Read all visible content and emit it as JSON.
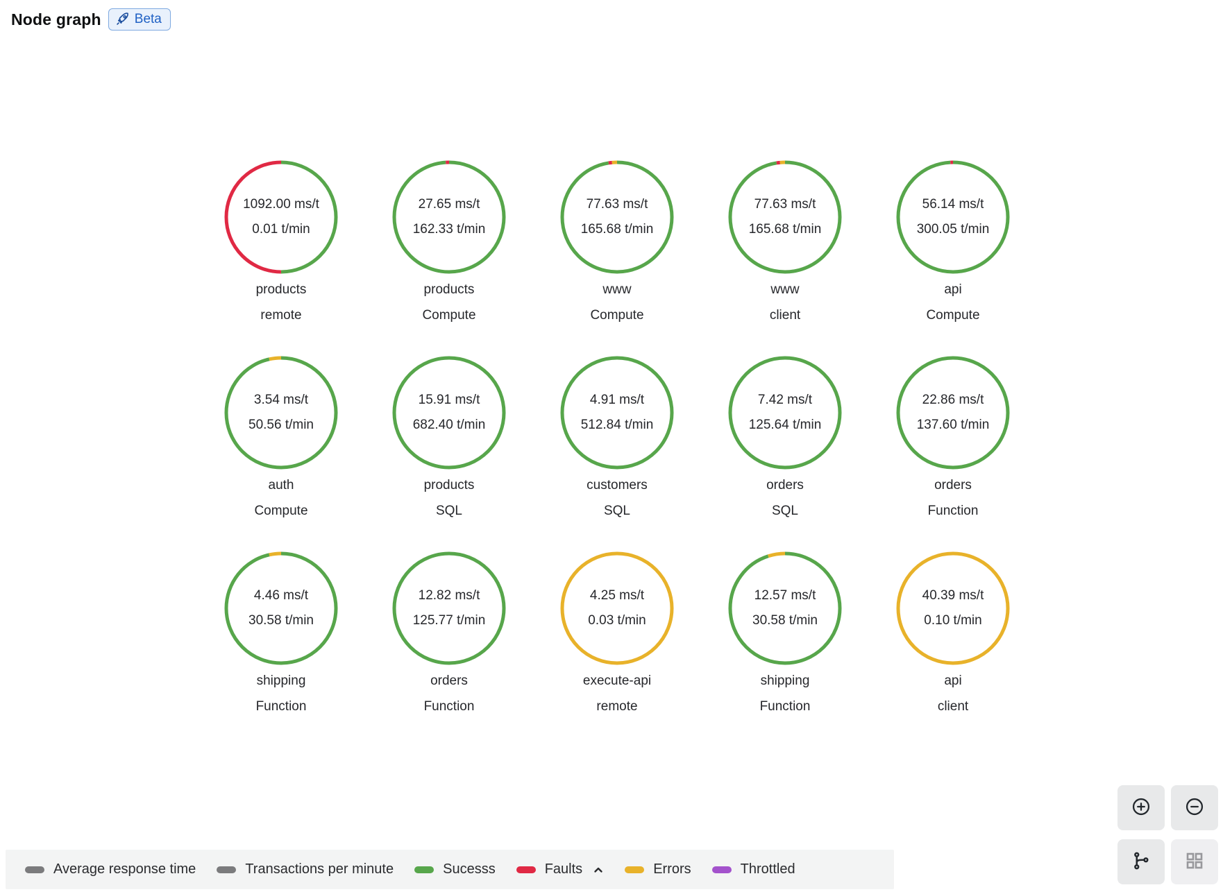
{
  "header": {
    "title": "Node graph",
    "beta_label": "Beta"
  },
  "colors": {
    "green": "#57a64b",
    "red": "#e02944",
    "yellow": "#e8b22a",
    "purple": "#a352cc",
    "gray": "#7b7b7d"
  },
  "nodes": [
    {
      "main_stat": "1092.00 ms/t",
      "secondary_stat": "0.01 t/min",
      "title": "products",
      "subtitle": "remote",
      "segments": [
        {
          "color": "green",
          "value": 0.5
        },
        {
          "color": "red",
          "value": 0.5
        }
      ]
    },
    {
      "main_stat": "27.65 ms/t",
      "secondary_stat": "162.33 t/min",
      "title": "products",
      "subtitle": "Compute",
      "segments": [
        {
          "color": "green",
          "value": 0.99
        },
        {
          "color": "red",
          "value": 0.01
        }
      ]
    },
    {
      "main_stat": "77.63 ms/t",
      "secondary_stat": "165.68 t/min",
      "title": "www",
      "subtitle": "Compute",
      "segments": [
        {
          "color": "green",
          "value": 0.975
        },
        {
          "color": "red",
          "value": 0.01
        },
        {
          "color": "yellow",
          "value": 0.015
        }
      ]
    },
    {
      "main_stat": "77.63 ms/t",
      "secondary_stat": "165.68 t/min",
      "title": "www",
      "subtitle": "client",
      "segments": [
        {
          "color": "green",
          "value": 0.975
        },
        {
          "color": "red",
          "value": 0.01
        },
        {
          "color": "yellow",
          "value": 0.015
        }
      ]
    },
    {
      "main_stat": "56.14 ms/t",
      "secondary_stat": "300.05 t/min",
      "title": "api",
      "subtitle": "Compute",
      "segments": [
        {
          "color": "green",
          "value": 0.992
        },
        {
          "color": "red",
          "value": 0.008
        }
      ]
    },
    {
      "main_stat": "3.54 ms/t",
      "secondary_stat": "50.56 t/min",
      "title": "auth",
      "subtitle": "Compute",
      "segments": [
        {
          "color": "green",
          "value": 0.965
        },
        {
          "color": "yellow",
          "value": 0.035
        }
      ]
    },
    {
      "main_stat": "15.91 ms/t",
      "secondary_stat": "682.40 t/min",
      "title": "products",
      "subtitle": "SQL",
      "segments": [
        {
          "color": "green",
          "value": 1
        }
      ]
    },
    {
      "main_stat": "4.91 ms/t",
      "secondary_stat": "512.84 t/min",
      "title": "customers",
      "subtitle": "SQL",
      "segments": [
        {
          "color": "green",
          "value": 1
        }
      ]
    },
    {
      "main_stat": "7.42 ms/t",
      "secondary_stat": "125.64 t/min",
      "title": "orders",
      "subtitle": "SQL",
      "segments": [
        {
          "color": "green",
          "value": 1
        }
      ]
    },
    {
      "main_stat": "22.86 ms/t",
      "secondary_stat": "137.60 t/min",
      "title": "orders",
      "subtitle": "Function",
      "segments": [
        {
          "color": "green",
          "value": 1
        }
      ]
    },
    {
      "main_stat": "4.46 ms/t",
      "secondary_stat": "30.58 t/min",
      "title": "shipping",
      "subtitle": "Function",
      "segments": [
        {
          "color": "green",
          "value": 0.965
        },
        {
          "color": "yellow",
          "value": 0.035
        }
      ]
    },
    {
      "main_stat": "12.82 ms/t",
      "secondary_stat": "125.77 t/min",
      "title": "orders",
      "subtitle": "Function",
      "segments": [
        {
          "color": "green",
          "value": 1
        }
      ]
    },
    {
      "main_stat": "4.25 ms/t",
      "secondary_stat": "0.03 t/min",
      "title": "execute-api",
      "subtitle": "remote",
      "segments": [
        {
          "color": "yellow",
          "value": 1
        }
      ]
    },
    {
      "main_stat": "12.57 ms/t",
      "secondary_stat": "30.58 t/min",
      "title": "shipping",
      "subtitle": "Function",
      "segments": [
        {
          "color": "green",
          "value": 0.95
        },
        {
          "color": "yellow",
          "value": 0.05
        }
      ]
    },
    {
      "main_stat": "40.39 ms/t",
      "secondary_stat": "0.10 t/min",
      "title": "api",
      "subtitle": "client",
      "segments": [
        {
          "color": "yellow",
          "value": 1
        }
      ]
    }
  ],
  "legend": {
    "items": [
      {
        "label": "Average response time",
        "color": "gray",
        "sorted": false
      },
      {
        "label": "Transactions per minute",
        "color": "gray",
        "sorted": false
      },
      {
        "label": "Sucesss",
        "color": "green",
        "sorted": false
      },
      {
        "label": "Faults",
        "color": "red",
        "sorted": true
      },
      {
        "label": "Errors",
        "color": "yellow",
        "sorted": false
      },
      {
        "label": "Throttled",
        "color": "purple",
        "sorted": false
      }
    ]
  },
  "controls": {
    "zoom_in_icon": "circle-plus-icon",
    "zoom_out_icon": "circle-minus-icon",
    "graph_layout_icon": "branch-layout-icon",
    "grid_layout_icon": "grid-layout-icon"
  }
}
